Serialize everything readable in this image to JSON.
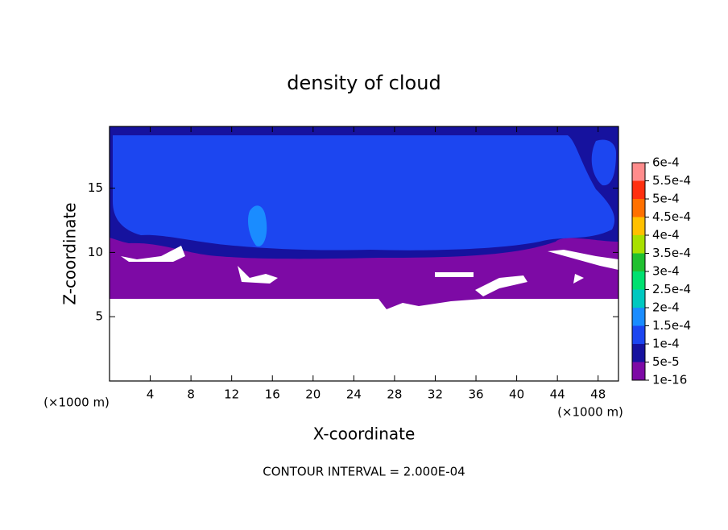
{
  "chart_data": {
    "type": "contour",
    "title": "density of cloud",
    "xlabel": "X-coordinate",
    "ylabel": "Z-coordinate",
    "x_unit": "(×1000 m)",
    "y_unit": "(×1000 m)",
    "footnote": "CONTOUR INTERVAL = 2.000E-04",
    "xlim": [
      0,
      50
    ],
    "ylim": [
      0,
      19.8
    ],
    "xticks": [
      4,
      8,
      12,
      16,
      20,
      24,
      28,
      32,
      36,
      40,
      44,
      48
    ],
    "yticks": [
      5,
      10,
      15
    ],
    "colorbar": {
      "levels": [
        {
          "value": 1e-16,
          "label": "1e-16"
        },
        {
          "value": 5e-05,
          "label": "5e-5"
        },
        {
          "value": 0.0001,
          "label": "1e-4"
        },
        {
          "value": 0.00015,
          "label": "1.5e-4"
        },
        {
          "value": 0.0002,
          "label": "2e-4"
        },
        {
          "value": 0.00025,
          "label": "2.5e-4"
        },
        {
          "value": 0.0003,
          "label": "3e-4"
        },
        {
          "value": 0.00035,
          "label": "3.5e-4"
        },
        {
          "value": 0.0004,
          "label": "4e-4"
        },
        {
          "value": 0.00045,
          "label": "4.5e-4"
        },
        {
          "value": 0.0005,
          "label": "5e-4"
        },
        {
          "value": 0.00055,
          "label": "5.5e-4"
        },
        {
          "value": 0.0006,
          "label": "6e-4"
        }
      ],
      "colors": [
        "#7d0aa5",
        "#16129e",
        "#1c46f0",
        "#1a8cff",
        "#00c8c0",
        "#00e070",
        "#20c030",
        "#a8e000",
        "#ffc000",
        "#ff7000",
        "#ff3010",
        "#ff8c8c"
      ]
    }
  }
}
